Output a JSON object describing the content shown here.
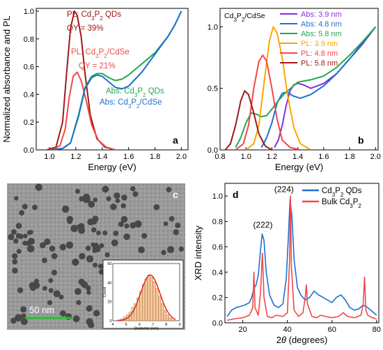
{
  "chart_data": [
    {
      "panel": "a",
      "type": "line",
      "xlabel": "Energy (eV)",
      "ylabel": "Normalized absorbance and PL",
      "xlim": [
        0.9,
        2.05
      ],
      "ylim": [
        0,
        1.02
      ],
      "xticks": [
        "1.0",
        "1.2",
        "1.4",
        "1.6",
        "1.8",
        "2.0"
      ],
      "yticks": [
        "0.0",
        "0.2",
        "0.4",
        "0.6",
        "0.8",
        "1.0"
      ],
      "annotations": [
        {
          "text": "PL: Cd3P2 QDs",
          "color": "#a01818"
        },
        {
          "text": "QY = 39%",
          "color": "#a01818"
        },
        {
          "text": "PL: Cd3P2/CdSe",
          "color": "#f04848"
        },
        {
          "text": "QY = 21%",
          "color": "#f04848"
        },
        {
          "text": "Abs: Cd3P2 QDs",
          "color": "#22a84a"
        },
        {
          "text": "Abs: Cd3P2/CdSe",
          "color": "#1e6fd0"
        }
      ],
      "series": [
        {
          "color": "#a01818",
          "x": [
            0.98,
            1.05,
            1.1,
            1.13,
            1.16,
            1.19,
            1.21,
            1.24,
            1.27,
            1.31,
            1.36,
            1.42,
            1.5
          ],
          "y": [
            0,
            0.02,
            0.2,
            0.55,
            0.88,
            1.0,
            0.97,
            0.82,
            0.55,
            0.25,
            0.08,
            0.02,
            0
          ]
        },
        {
          "color": "#f04848",
          "x": [
            1.02,
            1.08,
            1.12,
            1.15,
            1.18,
            1.21,
            1.24,
            1.28,
            1.32,
            1.37,
            1.43,
            1.5
          ],
          "y": [
            0,
            0.03,
            0.15,
            0.38,
            0.53,
            0.56,
            0.5,
            0.35,
            0.18,
            0.07,
            0.02,
            0
          ]
        },
        {
          "color": "#22a84a",
          "x": [
            1.0,
            1.1,
            1.16,
            1.22,
            1.27,
            1.32,
            1.36,
            1.4,
            1.45,
            1.5,
            1.55,
            1.6,
            1.7,
            1.8,
            1.9,
            1.95,
            2.0
          ],
          "y": [
            0,
            0.01,
            0.05,
            0.25,
            0.45,
            0.53,
            0.55,
            0.55,
            0.52,
            0.5,
            0.51,
            0.54,
            0.62,
            0.7,
            0.82,
            0.9,
            1.0
          ]
        },
        {
          "color": "#1e6fd0",
          "x": [
            1.0,
            1.1,
            1.16,
            1.22,
            1.27,
            1.32,
            1.36,
            1.4,
            1.45,
            1.5,
            1.55,
            1.6,
            1.7,
            1.8,
            1.9,
            1.95,
            2.0
          ],
          "y": [
            0,
            0.01,
            0.05,
            0.24,
            0.44,
            0.52,
            0.54,
            0.53,
            0.49,
            0.45,
            0.44,
            0.46,
            0.56,
            0.69,
            0.82,
            0.9,
            1.0
          ]
        }
      ]
    },
    {
      "panel": "b",
      "type": "line",
      "title": "Cd3P2/CdSe",
      "xlabel": "Energy (eV)",
      "xlim": [
        0.8,
        2.02
      ],
      "ylim": [
        0,
        1.15
      ],
      "xticks": [
        "0.8",
        "1.0",
        "1.2",
        "1.4",
        "1.6",
        "1.8",
        "2.0"
      ],
      "yticks": [
        "0.0",
        "0.5",
        "1.0"
      ],
      "legend": "top-right",
      "series": [
        {
          "name": "Abs: 3.9 nm",
          "color": "#8a2be2",
          "x": [
            1.22,
            1.25,
            1.28,
            1.31,
            1.34,
            1.37,
            1.4,
            1.44,
            1.5,
            1.6,
            1.7,
            1.8,
            1.9,
            2.0
          ],
          "y": [
            0.02,
            0.08,
            0.2,
            0.36,
            0.48,
            0.53,
            0.54,
            0.53,
            0.5,
            0.54,
            0.62,
            0.74,
            0.86,
            1.0
          ]
        },
        {
          "name": "Abs: 4.8 nm",
          "color": "#1e6fd0",
          "x": [
            1.12,
            1.16,
            1.2,
            1.24,
            1.28,
            1.32,
            1.36,
            1.42,
            1.5,
            1.6,
            1.7,
            1.8,
            1.9,
            2.0
          ],
          "y": [
            0.02,
            0.1,
            0.22,
            0.38,
            0.46,
            0.47,
            0.44,
            0.42,
            0.45,
            0.52,
            0.62,
            0.74,
            0.87,
            1.0
          ]
        },
        {
          "name": "Abs: 5.8 nm",
          "color": "#22a84a",
          "x": [
            0.92,
            0.96,
            1.0,
            1.04,
            1.08,
            1.12,
            1.16,
            1.2,
            1.25,
            1.3,
            1.4,
            1.5,
            1.6,
            1.7,
            1.8,
            1.9,
            2.0
          ],
          "y": [
            0.02,
            0.1,
            0.22,
            0.3,
            0.29,
            0.27,
            0.28,
            0.33,
            0.4,
            0.46,
            0.55,
            0.57,
            0.6,
            0.67,
            0.77,
            0.88,
            1.0
          ]
        },
        {
          "name": "PL: 3.9 nm",
          "color": "#ffa500",
          "x": [
            1.0,
            1.06,
            1.1,
            1.14,
            1.18,
            1.21,
            1.24,
            1.28,
            1.32,
            1.37,
            1.42,
            1.5
          ],
          "y": [
            0,
            0.05,
            0.2,
            0.55,
            0.88,
            1.0,
            0.95,
            0.75,
            0.45,
            0.18,
            0.05,
            0
          ]
        },
        {
          "name": "PL: 4.8 nm",
          "color": "#f04848",
          "x": [
            0.92,
            0.98,
            1.02,
            1.06,
            1.1,
            1.13,
            1.16,
            1.2,
            1.24,
            1.28,
            1.34,
            1.42
          ],
          "y": [
            0,
            0.05,
            0.2,
            0.5,
            0.72,
            0.77,
            0.72,
            0.5,
            0.25,
            0.08,
            0.02,
            0
          ]
        },
        {
          "name": "PL: 5.8 nm",
          "color": "#a01818",
          "x": [
            0.84,
            0.88,
            0.92,
            0.96,
            0.99,
            1.02,
            1.06,
            1.1,
            1.15,
            1.2
          ],
          "y": [
            0,
            0.05,
            0.2,
            0.4,
            0.48,
            0.45,
            0.3,
            0.13,
            0.03,
            0
          ]
        }
      ]
    },
    {
      "panel": "d",
      "type": "line",
      "xlabel": "2θ (degrees)",
      "ylabel": "XRD intensity",
      "xlim": [
        12,
        81
      ],
      "ylim": [
        0,
        1.1
      ],
      "xticks": [
        "20",
        "40",
        "60",
        "80"
      ],
      "yticks": [
        "0.0",
        "0.2",
        "0.4",
        "0.6",
        "0.8",
        "1.0"
      ],
      "legend": "top-right",
      "peak_labels": [
        "(222)",
        "(224)"
      ],
      "series": [
        {
          "name": "Cd3P2 QDs",
          "color": "#1e6fd0",
          "x": [
            13,
            15,
            17,
            19,
            21,
            23,
            24,
            25,
            26,
            27,
            28,
            28.7,
            29.5,
            30.5,
            32,
            34,
            36,
            38,
            39.5,
            40.5,
            41.2,
            42,
            43,
            44.5,
            46,
            48,
            50,
            52,
            54,
            56,
            58,
            60,
            62,
            64,
            66,
            68,
            70,
            72,
            74,
            76,
            78,
            80
          ],
          "y": [
            0.05,
            0.1,
            0.12,
            0.13,
            0.14,
            0.16,
            0.2,
            0.27,
            0.3,
            0.38,
            0.58,
            0.7,
            0.65,
            0.4,
            0.22,
            0.14,
            0.12,
            0.15,
            0.35,
            0.7,
            0.97,
            0.85,
            0.5,
            0.28,
            0.22,
            0.18,
            0.2,
            0.25,
            0.22,
            0.2,
            0.18,
            0.16,
            0.2,
            0.22,
            0.18,
            0.12,
            0.1,
            0.11,
            0.14,
            0.12,
            0.09,
            0.06
          ]
        },
        {
          "name": "Bulk Cd3P2",
          "color": "#f04848",
          "x": [
            13,
            16,
            20,
            23,
            24.5,
            25,
            25.5,
            27,
            28,
            28.8,
            29.5,
            31,
            33,
            35,
            38,
            40,
            41,
            41.4,
            41.8,
            43,
            45,
            47,
            48,
            48.5,
            49,
            51,
            53,
            55,
            57,
            60,
            63,
            65,
            67,
            70,
            73,
            74,
            74.6,
            75.2,
            76,
            78,
            80
          ],
          "y": [
            0.02,
            0.03,
            0.04,
            0.06,
            0.12,
            0.4,
            0.12,
            0.06,
            0.25,
            0.55,
            0.2,
            0.05,
            0.04,
            0.06,
            0.05,
            0.08,
            0.5,
            1.0,
            0.45,
            0.1,
            0.05,
            0.08,
            0.2,
            0.3,
            0.15,
            0.05,
            0.04,
            0.06,
            0.05,
            0.04,
            0.05,
            0.08,
            0.05,
            0.04,
            0.06,
            0.15,
            0.36,
            0.1,
            0.06,
            0.04,
            0.03
          ]
        }
      ]
    },
    {
      "panel": "c-inset",
      "type": "bar",
      "xlabel": "Diameter (nm)",
      "ylabel": "Count",
      "xlim": [
        4,
        9
      ],
      "ylim": [
        0,
        60
      ],
      "xticks": [
        "4",
        "5",
        "6",
        "7",
        "8",
        "9"
      ],
      "yticks": [
        "0",
        "20",
        "40",
        "60"
      ],
      "bin_centers": [
        4.5,
        4.7,
        4.9,
        5.1,
        5.3,
        5.5,
        5.7,
        5.9,
        6.1,
        6.3,
        6.5,
        6.7,
        6.9,
        7.1,
        7.3,
        7.5,
        7.7,
        7.9,
        8.1,
        8.3,
        8.5
      ],
      "values": [
        1,
        2,
        4,
        6,
        9,
        14,
        18,
        24,
        31,
        38,
        44,
        48,
        46,
        41,
        34,
        26,
        18,
        11,
        6,
        3,
        1
      ],
      "fit_color": "#e02020",
      "bar_color": "#f6c79a"
    }
  ],
  "panels": {
    "a": "a",
    "b": "b",
    "c": "c",
    "d": "d"
  },
  "scale_bar": {
    "label": "50 nm",
    "color": "#22c32a"
  }
}
